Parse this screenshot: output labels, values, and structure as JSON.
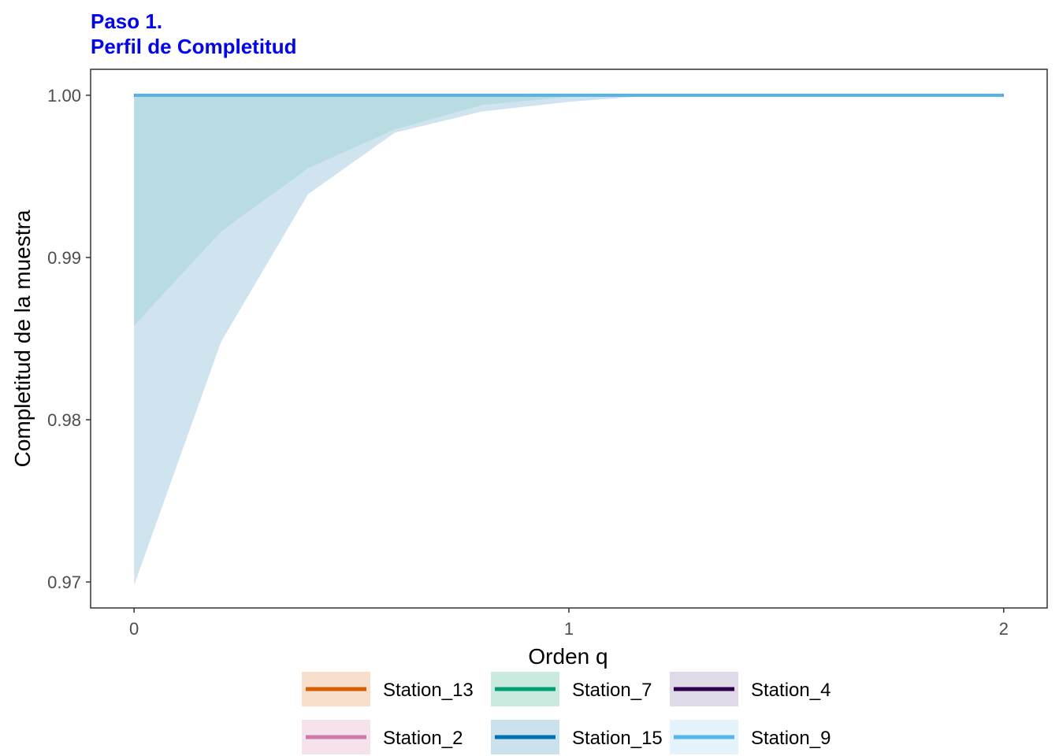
{
  "chart_data": {
    "type": "area",
    "title_line1": "Paso 1.",
    "title_line2": "Perfil de Completitud",
    "title_color": "#0000ff",
    "xlabel": "Orden q",
    "ylabel": "Completitud de la muestra",
    "xlim": [
      -0.1,
      2.1
    ],
    "ylim": [
      0.9684,
      1.0016
    ],
    "x_ticks": [
      0,
      1,
      2
    ],
    "x_tick_labels": [
      "0",
      "1",
      "2"
    ],
    "y_ticks": [
      0.97,
      0.98,
      0.99,
      1.0
    ],
    "y_tick_labels": [
      "0.97",
      "0.98",
      "0.99",
      "1.00"
    ],
    "grid": false,
    "legend_position": "bottom",
    "series": [
      {
        "name": "Station_13",
        "color": "#d55e00",
        "fill": "#f3c9a8",
        "x": [
          0,
          2
        ],
        "y": [
          1.0,
          1.0
        ],
        "lower": [
          1.0,
          1.0
        ],
        "upper": [
          1.0,
          1.0
        ]
      },
      {
        "name": "Station_2",
        "color": "#cc79a7",
        "fill": "#efcfe0",
        "x": [
          0,
          2
        ],
        "y": [
          1.0,
          1.0
        ],
        "lower": [
          1.0,
          1.0
        ],
        "upper": [
          1.0,
          1.0
        ]
      },
      {
        "name": "Station_7",
        "color": "#009e73",
        "fill": "#a6dccb",
        "x": [
          0,
          0.2,
          0.4,
          0.6,
          0.8,
          1.0,
          1.2,
          2.0
        ],
        "y": [
          1.0,
          1.0,
          1.0,
          1.0,
          1.0,
          1.0,
          1.0,
          1.0
        ],
        "lower": [
          0.9858,
          0.9916,
          0.9955,
          0.9979,
          0.9994,
          0.9999,
          1.0,
          1.0
        ],
        "upper": [
          1.0,
          1.0,
          1.0,
          1.0,
          1.0,
          1.0,
          1.0,
          1.0
        ]
      },
      {
        "name": "Station_15",
        "color": "#0072b2",
        "fill": "#a8cde2",
        "x": [
          0,
          0.2,
          0.4,
          0.6,
          0.8,
          1.0,
          1.2,
          2.0
        ],
        "y": [
          1.0,
          1.0,
          1.0,
          1.0,
          1.0,
          1.0,
          1.0,
          1.0
        ],
        "lower": [
          0.9698,
          0.9848,
          0.9939,
          0.9977,
          0.999,
          0.9996,
          1.0,
          1.0
        ],
        "upper": [
          1.0,
          1.0,
          1.0,
          1.0,
          1.0,
          1.0,
          1.0,
          1.0
        ]
      },
      {
        "name": "Station_4",
        "color": "#2d004b",
        "fill": "#c9bfd9",
        "x": [
          0,
          2
        ],
        "y": [
          1.0,
          1.0
        ],
        "lower": [
          1.0,
          1.0
        ],
        "upper": [
          1.0,
          1.0
        ]
      },
      {
        "name": "Station_9",
        "color": "#56b4e9",
        "fill": "#d4ebfa",
        "x": [
          0,
          2
        ],
        "y": [
          1.0,
          1.0
        ],
        "lower": [
          1.0,
          1.0
        ],
        "upper": [
          1.0,
          1.0
        ]
      }
    ]
  }
}
